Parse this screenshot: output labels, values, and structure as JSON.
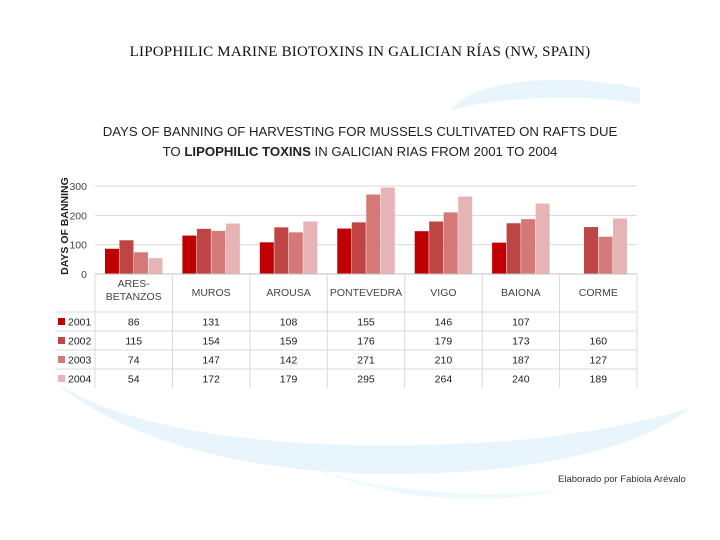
{
  "slide_title": "LIPOPHILIC MARINE BIOTOXINS IN GALICIAN RÍAS (NW, SPAIN)",
  "credit": "Elaborado por Fabiola Arévalo",
  "chart_data": {
    "type": "bar",
    "title_line1": "DAYS OF BANNING OF HARVESTING FOR MUSSELS CULTIVATED ON RAFTS DUE",
    "title_line2_pre": "TO ",
    "title_line2_bold": "LIPOPHILIC TOXINS",
    "title_line2_post": " IN GALICIAN RIAS FROM 2001 TO 2004",
    "ylabel": "DAYS OF BANNING",
    "ylim": [
      0,
      300
    ],
    "yticks": [
      0,
      100,
      200,
      300
    ],
    "grid": true,
    "categories": [
      "ARES-BETANZOS",
      "MUROS",
      "AROUSA",
      "PONTEVEDRA",
      "VIGO",
      "BAIONA",
      "CORME"
    ],
    "category_lines": [
      [
        "ARES-",
        "BETANZOS"
      ],
      [
        "MUROS"
      ],
      [
        "AROUSA"
      ],
      [
        "PONTEVEDRA"
      ],
      [
        "VIGO"
      ],
      [
        "BAIONA"
      ],
      [
        "CORME"
      ]
    ],
    "series": [
      {
        "name": "2001",
        "color": "#c00000",
        "values": [
          86,
          131,
          108,
          155,
          146,
          107,
          null
        ]
      },
      {
        "name": "2002",
        "color": "#bf4545",
        "values": [
          115,
          154,
          159,
          176,
          179,
          173,
          160
        ]
      },
      {
        "name": "2003",
        "color": "#d47878",
        "values": [
          74,
          147,
          142,
          271,
          210,
          187,
          127
        ]
      },
      {
        "name": "2004",
        "color": "#e6b4b4",
        "values": [
          54,
          172,
          179,
          295,
          264,
          240,
          189
        ]
      }
    ],
    "legend_placement": "table-left"
  }
}
